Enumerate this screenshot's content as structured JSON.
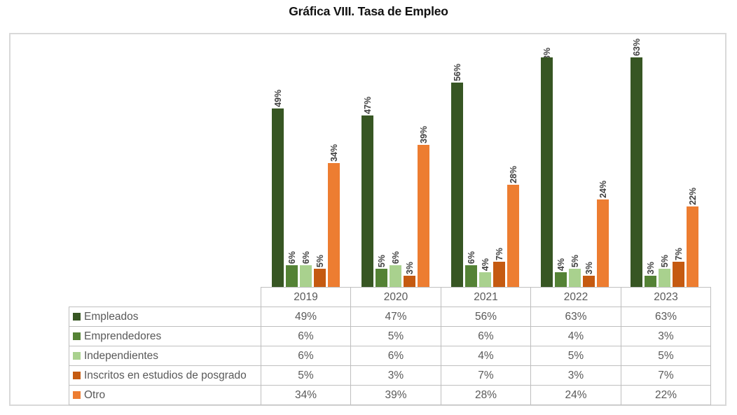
{
  "title": "Gráfica VIII. Tasa de Empleo",
  "chart_data": {
    "type": "bar",
    "title": "Gráfica VIII. Tasa de Empleo",
    "categories": [
      "2019",
      "2020",
      "2021",
      "2022",
      "2023"
    ],
    "series": [
      {
        "key": "empleados",
        "name": "Empleados",
        "color": "#375623",
        "values": [
          49,
          47,
          56,
          63,
          63
        ]
      },
      {
        "key": "emprendedores",
        "name": "Emprendedores",
        "color": "#548235",
        "values": [
          6,
          5,
          6,
          4,
          3
        ]
      },
      {
        "key": "independientes",
        "name": "Independientes",
        "color": "#A9D18E",
        "values": [
          6,
          6,
          4,
          5,
          5
        ]
      },
      {
        "key": "posgrado",
        "name": "Inscritos en estudios de posgrado",
        "color": "#C55A11",
        "values": [
          5,
          3,
          7,
          3,
          7
        ]
      },
      {
        "key": "otro",
        "name": "Otro",
        "color": "#ED7D31",
        "values": [
          34,
          39,
          28,
          24,
          22
        ]
      }
    ],
    "value_suffix": "%",
    "data_labels": true,
    "data_label_rotation": -90,
    "ylim": [
      0,
      70
    ],
    "gridlines": false,
    "axis_lines": false,
    "legend_position": "table-rows-left",
    "clipped_label": {
      "category": "2022",
      "series_key": "empleados"
    }
  },
  "colors": {
    "background": "#ffffff",
    "frame_border": "#d9d9d9",
    "table_border": "#bfbfbf",
    "table_text": "#595959",
    "bar_label_text": "#3f3f3f",
    "title_text": "#111111"
  }
}
